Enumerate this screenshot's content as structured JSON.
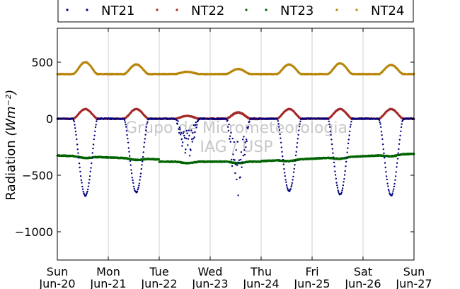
{
  "chart_data": {
    "type": "scatter",
    "title": "",
    "ylabel": "Radiation",
    "ylabel_unit": "(Wm⁻²)",
    "ylim": [
      -1250,
      800
    ],
    "yticks": [
      500,
      0,
      -500,
      -1000
    ],
    "ytick_labels": [
      "500",
      "0",
      "−500",
      "−1000"
    ],
    "x_range_days": [
      0,
      7
    ],
    "xticks": [
      {
        "day": 0,
        "weekday": "Sun",
        "date": "Jun-20"
      },
      {
        "day": 1,
        "weekday": "Mon",
        "date": "Jun-21"
      },
      {
        "day": 2,
        "weekday": "Tue",
        "date": "Jun-22"
      },
      {
        "day": 3,
        "weekday": "Wed",
        "date": "Jun-23"
      },
      {
        "day": 4,
        "weekday": "Thu",
        "date": "Jun-24"
      },
      {
        "day": 5,
        "weekday": "Fri",
        "date": "Jun-25"
      },
      {
        "day": 6,
        "weekday": "Sat",
        "date": "Jun-26"
      },
      {
        "day": 7,
        "weekday": "Sun",
        "date": "Jun-27"
      }
    ],
    "grid": "vertical",
    "legend_position": "top",
    "watermark": [
      "Grupo de Micrometeorologia",
      "IAG / USP"
    ],
    "series": [
      {
        "name": "NT21",
        "color": "#00007f",
        "description_values": {
          "night": 0,
          "day_min": [
            -680,
            -650,
            -320,
            -640,
            -640,
            -670,
            -680
          ]
        }
      },
      {
        "name": "NT22",
        "color": "#a52a2a",
        "description_values": {
          "night": 0,
          "day_peak": 85
        }
      },
      {
        "name": "NT23",
        "color": "#006400",
        "description_values": {
          "start": -325,
          "mid": -385,
          "end": -310
        }
      },
      {
        "name": "NT24",
        "color": "#b8860b",
        "description_values": {
          "night": 395,
          "day_peak": [
            500,
            480,
            415,
            440,
            480,
            490,
            475
          ]
        }
      }
    ]
  }
}
